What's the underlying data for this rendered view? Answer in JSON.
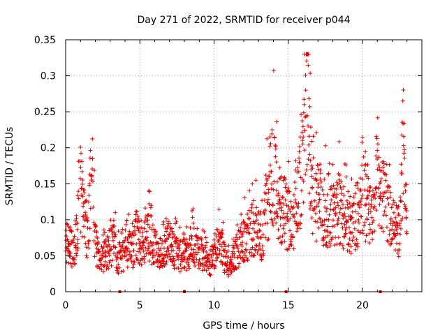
{
  "chart_data": {
    "type": "scatter",
    "title": "Day 271 of 2022, SRMTID for receiver p044",
    "xlabel": "GPS time / hours",
    "ylabel": "SRMTID / TECUs",
    "xlim": [
      0,
      24
    ],
    "ylim": [
      0,
      0.35
    ],
    "x_ticks": [
      0,
      5,
      10,
      15,
      20
    ],
    "x_tick_labels": [
      "0",
      "5",
      "10",
      "15",
      "20"
    ],
    "y_ticks": [
      0,
      0.05,
      0.1,
      0.15,
      0.2,
      0.25,
      0.3,
      0.35
    ],
    "y_tick_labels": [
      "0",
      "0.05",
      "0.1",
      "0.15",
      "0.2",
      "0.25",
      "0.3",
      "0.35"
    ],
    "grid": true,
    "marker": "+",
    "marker_color": "#e00000",
    "series": [
      {
        "name": "SRMTID p044",
        "x": [
          0.0,
          0.25,
          0.5,
          0.75,
          1.0,
          1.25,
          1.5,
          1.75,
          2.0,
          2.25,
          2.5,
          2.75,
          3.0,
          3.25,
          3.5,
          3.75,
          4.0,
          4.25,
          4.5,
          4.75,
          5.0,
          5.25,
          5.5,
          5.75,
          6.0,
          6.25,
          6.5,
          6.75,
          7.0,
          7.25,
          7.5,
          7.75,
          8.0,
          8.25,
          8.5,
          8.75,
          9.0,
          9.25,
          9.5,
          9.75,
          10.0,
          10.25,
          10.5,
          10.75,
          11.0,
          11.25,
          11.5,
          11.75,
          12.0,
          12.25,
          12.5,
          12.75,
          13.0,
          13.25,
          13.5,
          13.75,
          14.0,
          14.25,
          14.5,
          14.75,
          15.0,
          15.25,
          15.5,
          15.75,
          16.0,
          16.25,
          16.5,
          16.75,
          17.0,
          17.25,
          17.5,
          17.75,
          18.0,
          18.25,
          18.5,
          18.75,
          19.0,
          19.25,
          19.5,
          19.75,
          20.0,
          20.25,
          20.5,
          20.75,
          21.0,
          21.25,
          21.5,
          21.75,
          22.0,
          22.25,
          22.5,
          22.75,
          23.0
        ],
        "y": [
          0.07,
          0.065,
          0.06,
          0.075,
          0.14,
          0.1,
          0.08,
          0.17,
          0.07,
          0.05,
          0.045,
          0.055,
          0.06,
          0.07,
          0.045,
          0.05,
          0.05,
          0.06,
          0.055,
          0.08,
          0.065,
          0.06,
          0.085,
          0.07,
          0.06,
          0.055,
          0.05,
          0.065,
          0.07,
          0.06,
          0.055,
          0.05,
          0.06,
          0.045,
          0.075,
          0.06,
          0.055,
          0.05,
          0.045,
          0.04,
          0.055,
          0.065,
          0.06,
          0.045,
          0.035,
          0.04,
          0.055,
          0.065,
          0.07,
          0.075,
          0.085,
          0.09,
          0.08,
          0.075,
          0.11,
          0.14,
          0.17,
          0.13,
          0.12,
          0.11,
          0.1,
          0.09,
          0.12,
          0.14,
          0.22,
          0.28,
          0.16,
          0.13,
          0.125,
          0.12,
          0.11,
          0.1,
          0.105,
          0.11,
          0.12,
          0.1,
          0.095,
          0.09,
          0.1,
          0.11,
          0.15,
          0.12,
          0.11,
          0.1,
          0.19,
          0.14,
          0.12,
          0.11,
          0.09,
          0.1,
          0.08,
          0.2,
          0.09
        ]
      }
    ],
    "gap_markers_x": [
      3.65,
      8.0,
      14.85,
      21.2
    ]
  }
}
